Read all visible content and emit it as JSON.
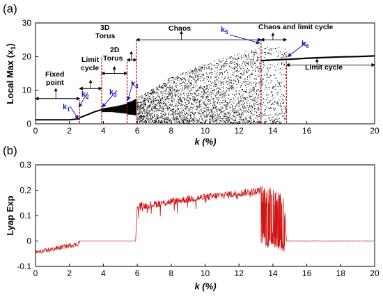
{
  "panel_a": {
    "tag": "(a)",
    "ylabel": "Local Max (x",
    "ylabel_sub": "1",
    "ylabel_close": ")",
    "xlabel": "k (%)",
    "xticks": [
      "0",
      "2",
      "4",
      "6",
      "8",
      "10",
      "12",
      "14",
      "16",
      "20"
    ],
    "yticks": [
      "0",
      "10",
      "20",
      "30"
    ],
    "annotations": {
      "fixed_point_1": "Fixed",
      "fixed_point_2": "point",
      "limit_cycle_1": "Limit",
      "limit_cycle_2": "cycle",
      "torus2d_1": "2D",
      "torus2d_2": "Torus",
      "torus3d_1": "3D",
      "torus3d_2": "Torus",
      "chaos": "Chaos",
      "chaos_limit": "Chaos and limit cycle",
      "limit_cycle_right": "Limit cycle"
    },
    "k_markers": [
      {
        "name": "k",
        "sub": "1"
      },
      {
        "name": "k",
        "sub": "2"
      },
      {
        "name": "k",
        "sub": "3"
      },
      {
        "name": "k",
        "sub": "4"
      },
      {
        "name": "k",
        "sub": "5"
      },
      {
        "name": "k",
        "sub": "6"
      }
    ]
  },
  "panel_b": {
    "tag": "(b)",
    "ylabel": "Lyap Exp",
    "xlabel": "k (%)",
    "xticks": [
      "0",
      "2",
      "4",
      "6",
      "8",
      "10",
      "12",
      "14",
      "16",
      "18",
      "20"
    ],
    "yticks": [
      "-0.1",
      "0",
      "0.1",
      "0.2",
      "0.3"
    ]
  },
  "colors": {
    "bifurcation_points": "#000000",
    "transition_lines": "#d01515",
    "lyapunov_curve": "#d01515",
    "k_markers": "#1a1ab4"
  },
  "chart_data": [
    {
      "type": "scatter",
      "panel": "a",
      "xlabel": "k (%)",
      "ylabel": "Local Max (x1)",
      "xlim": [
        0,
        20
      ],
      "ylim": [
        0,
        30
      ],
      "grid": false,
      "transitions_k": {
        "k1": 2.6,
        "k2": 2.6,
        "k3": 3.9,
        "k4": 5.4,
        "k5": 13.3,
        "k6": 14.8
      },
      "series": [
        {
          "regime": "fixed point",
          "x": [
            0,
            1,
            2,
            2.6
          ],
          "y": [
            1.2,
            1.2,
            1.2,
            1.5
          ]
        },
        {
          "regime": "limit cycle",
          "x": [
            2.6,
            3.0,
            3.5,
            3.9
          ],
          "y": [
            1.8,
            2.6,
            3.6,
            4.2
          ]
        },
        {
          "regime": "2D torus (band)",
          "x": [
            3.9,
            4.5,
            5.0,
            5.4
          ],
          "y_min": [
            3.5,
            3.5,
            3.2,
            3.0
          ],
          "y_max": [
            4.6,
            5.0,
            5.5,
            6.0
          ]
        },
        {
          "regime": "3D torus (band)",
          "x": [
            5.4,
            5.7,
            5.95
          ],
          "y_min": [
            2.8,
            2.7,
            2.5
          ],
          "y_max": [
            6.3,
            6.8,
            7.5
          ]
        },
        {
          "regime": "chaos (envelope)",
          "x": [
            6,
            8,
            10,
            12,
            13.3,
            14.8
          ],
          "y_min": [
            0.5,
            0.3,
            0.3,
            0.3,
            0.3,
            0.3
          ],
          "y_max": [
            8,
            14,
            18,
            21,
            23,
            23
          ]
        },
        {
          "regime": "limit cycle (upper branch)",
          "x": [
            13.3,
            14,
            15,
            16,
            17,
            18,
            19,
            20
          ],
          "y": [
            18.8,
            19.0,
            19.2,
            19.5,
            19.7,
            19.9,
            20.0,
            20.2
          ]
        }
      ]
    },
    {
      "type": "line",
      "panel": "b",
      "xlabel": "k (%)",
      "ylabel": "Lyap Exp",
      "xlim": [
        0,
        20
      ],
      "ylim": [
        -0.1,
        0.3
      ],
      "grid": false,
      "series": [
        {
          "x": [
            0,
            0.5,
            1,
            1.5,
            2,
            2.5,
            2.6,
            3,
            4,
            5,
            5.9,
            6.0,
            6.5,
            7,
            8,
            9,
            10,
            11,
            12,
            12.5,
            13,
            13.3
          ],
          "y": [
            -0.045,
            -0.04,
            -0.032,
            -0.025,
            -0.018,
            -0.012,
            0.0,
            0.0,
            0.0,
            0.0,
            0.0,
            0.135,
            0.14,
            0.145,
            0.155,
            0.165,
            0.172,
            0.18,
            0.188,
            0.192,
            0.195,
            0.2
          ]
        },
        {
          "x": [
            13.3,
            13.5,
            13.7,
            13.9,
            14.1,
            14.3,
            14.5,
            14.7,
            14.8
          ],
          "y_min": [
            -0.02,
            -0.03,
            -0.04,
            -0.02,
            -0.03,
            -0.04,
            -0.04,
            -0.05,
            0.0
          ],
          "y_max": [
            0.22,
            0.21,
            0.2,
            0.22,
            0.2,
            0.19,
            0.2,
            0.15,
            0.0
          ]
        },
        {
          "x": [
            14.8,
            16,
            18,
            20
          ],
          "y": [
            0.0,
            0.0,
            0.0,
            0.0
          ]
        }
      ]
    }
  ]
}
